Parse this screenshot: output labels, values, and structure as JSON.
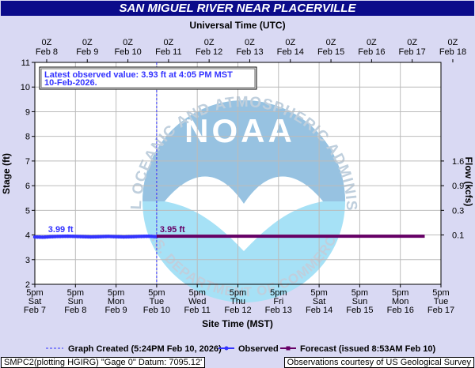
{
  "title": "SAN MIGUEL RIVER NEAR PLACERVILLE",
  "chart_data": {
    "type": "line",
    "top_axis_title": "Universal Time (UTC)",
    "bottom_axis_title": "Site Time (MST)",
    "ylabel": "Stage (ft)",
    "y2label": "Flow (kcfs)",
    "ylim": [
      2,
      11
    ],
    "y_ticks": [
      2,
      3,
      4,
      5,
      6,
      7,
      8,
      9,
      10,
      11
    ],
    "y2_ticks": [
      {
        "label": "1.6",
        "stage": 7
      },
      {
        "label": "0.9",
        "stage": 6
      },
      {
        "label": "0.3",
        "stage": 5
      },
      {
        "label": "0.1",
        "stage": 4
      }
    ],
    "top_ticks": [
      {
        "l1": "0Z",
        "l2": "Feb  8"
      },
      {
        "l1": "0Z",
        "l2": "Feb  9"
      },
      {
        "l1": "0Z",
        "l2": "Feb 10"
      },
      {
        "l1": "0Z",
        "l2": "Feb 11"
      },
      {
        "l1": "0Z",
        "l2": "Feb 12"
      },
      {
        "l1": "0Z",
        "l2": "Feb 13"
      },
      {
        "l1": "0Z",
        "l2": "Feb 14"
      },
      {
        "l1": "0Z",
        "l2": "Feb 15"
      },
      {
        "l1": "0Z",
        "l2": "Feb 16"
      },
      {
        "l1": "0Z",
        "l2": "Feb 17"
      },
      {
        "l1": "0Z",
        "l2": "Feb 18"
      }
    ],
    "bottom_ticks": [
      {
        "l1": "5pm",
        "l2": "Sat",
        "l3": "Feb 7"
      },
      {
        "l1": "5pm",
        "l2": "Sun",
        "l3": "Feb 8"
      },
      {
        "l1": "5pm",
        "l2": "Mon",
        "l3": "Feb 9"
      },
      {
        "l1": "5pm",
        "l2": "Tue",
        "l3": "Feb 10"
      },
      {
        "l1": "5pm",
        "l2": "Wed",
        "l3": "Feb 11"
      },
      {
        "l1": "5pm",
        "l2": "Thu",
        "l3": "Feb 12"
      },
      {
        "l1": "5pm",
        "l2": "Fri",
        "l3": "Feb 13"
      },
      {
        "l1": "5pm",
        "l2": "Sat",
        "l3": "Feb 14"
      },
      {
        "l1": "5pm",
        "l2": "Sun",
        "l3": "Feb 15"
      },
      {
        "l1": "5pm",
        "l2": "Mon",
        "l3": "Feb 16"
      },
      {
        "l1": "5pm",
        "l2": "Tue",
        "l3": "Feb 17"
      }
    ],
    "x_range_days": [
      0,
      10
    ],
    "created_day": 3.0,
    "observed": {
      "name": "Observed",
      "color": "#3333ff",
      "x_days": [
        0,
        0.2,
        0.4,
        0.6,
        0.8,
        1.0,
        1.2,
        1.4,
        1.6,
        1.8,
        2.0,
        2.2,
        2.4,
        2.6,
        2.8,
        3.0
      ],
      "values": [
        3.92,
        3.91,
        3.93,
        3.94,
        3.95,
        3.94,
        3.93,
        3.92,
        3.93,
        3.94,
        3.93,
        3.92,
        3.93,
        3.94,
        3.95,
        3.93
      ]
    },
    "forecast": {
      "name": "Forecast",
      "color": "#660066",
      "x_days": [
        3.0,
        9.6
      ],
      "values": [
        3.95,
        3.95
      ]
    },
    "labels": {
      "observed_peak": "3.99 ft",
      "forecast_peak": "3.95 ft"
    },
    "latest_box": {
      "line1": "Latest observed value: 3.93 ft at 4:05 PM MST",
      "line2": "10-Feb-2026."
    },
    "legend": {
      "created": "Graph Created (5:24PM Feb 10, 2026)",
      "observed": "Observed",
      "forecast": "Forecast (issued 8:53AM Feb 10)"
    },
    "watermark": {
      "logo": "NOAA",
      "ring_top": "NATIONAL OCEANIC AND ATMOSPHERIC ADMINISTRATION",
      "ring_bottom": "U.S. DEPARTMENT OF COMMERCE"
    },
    "grid": true
  },
  "footer": {
    "left": "SMPC2(plotting HGIRG) \"Gage 0\" Datum: 7095.12'",
    "right": "Observations courtesy of US Geological Survey"
  }
}
